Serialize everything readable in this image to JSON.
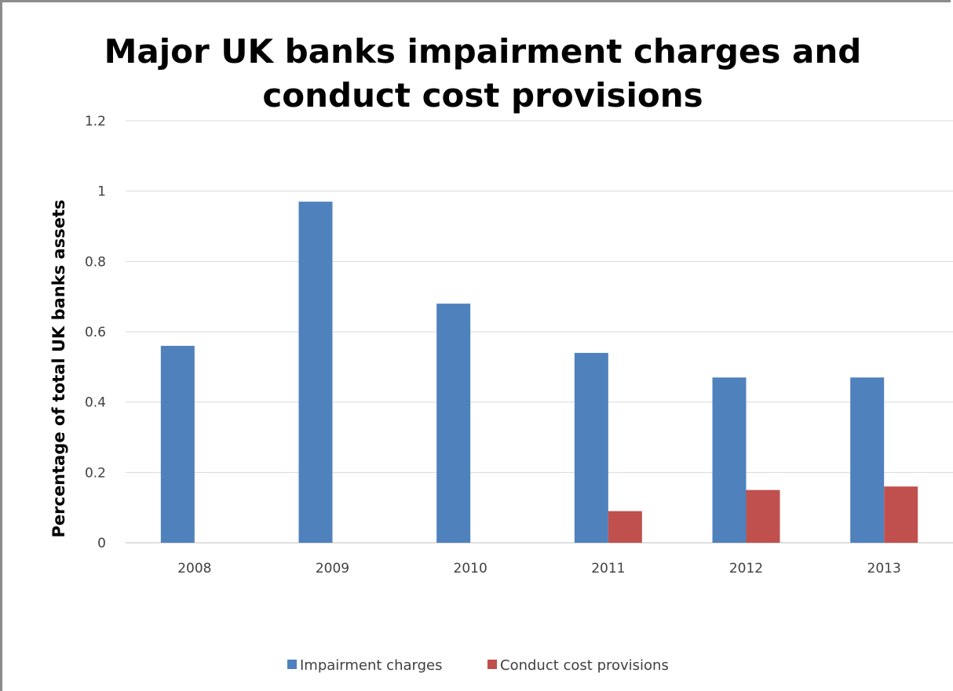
{
  "chart_data": {
    "type": "bar",
    "title_lines": [
      "Major UK banks impairment charges and",
      "conduct cost provisions"
    ],
    "xlabel": "",
    "ylabel": "Percentage of total UK banks  assets",
    "categories": [
      "2008",
      "2009",
      "2010",
      "2011",
      "2012",
      "2013"
    ],
    "ylim": [
      0,
      1.2
    ],
    "yticks": [
      "0",
      "0.2",
      "0.4",
      "0.6",
      "0.8",
      "1",
      "1.2"
    ],
    "grid": true,
    "legend_position": "bottom",
    "series": [
      {
        "name": "Impairment charges",
        "color": "#4f81bd",
        "values": [
          0.56,
          0.97,
          0.68,
          0.54,
          0.47,
          0.47
        ]
      },
      {
        "name": "Conduct cost provisions",
        "color": "#c0504d",
        "values": [
          0,
          0,
          0,
          0.09,
          0.15,
          0.16
        ]
      }
    ]
  }
}
